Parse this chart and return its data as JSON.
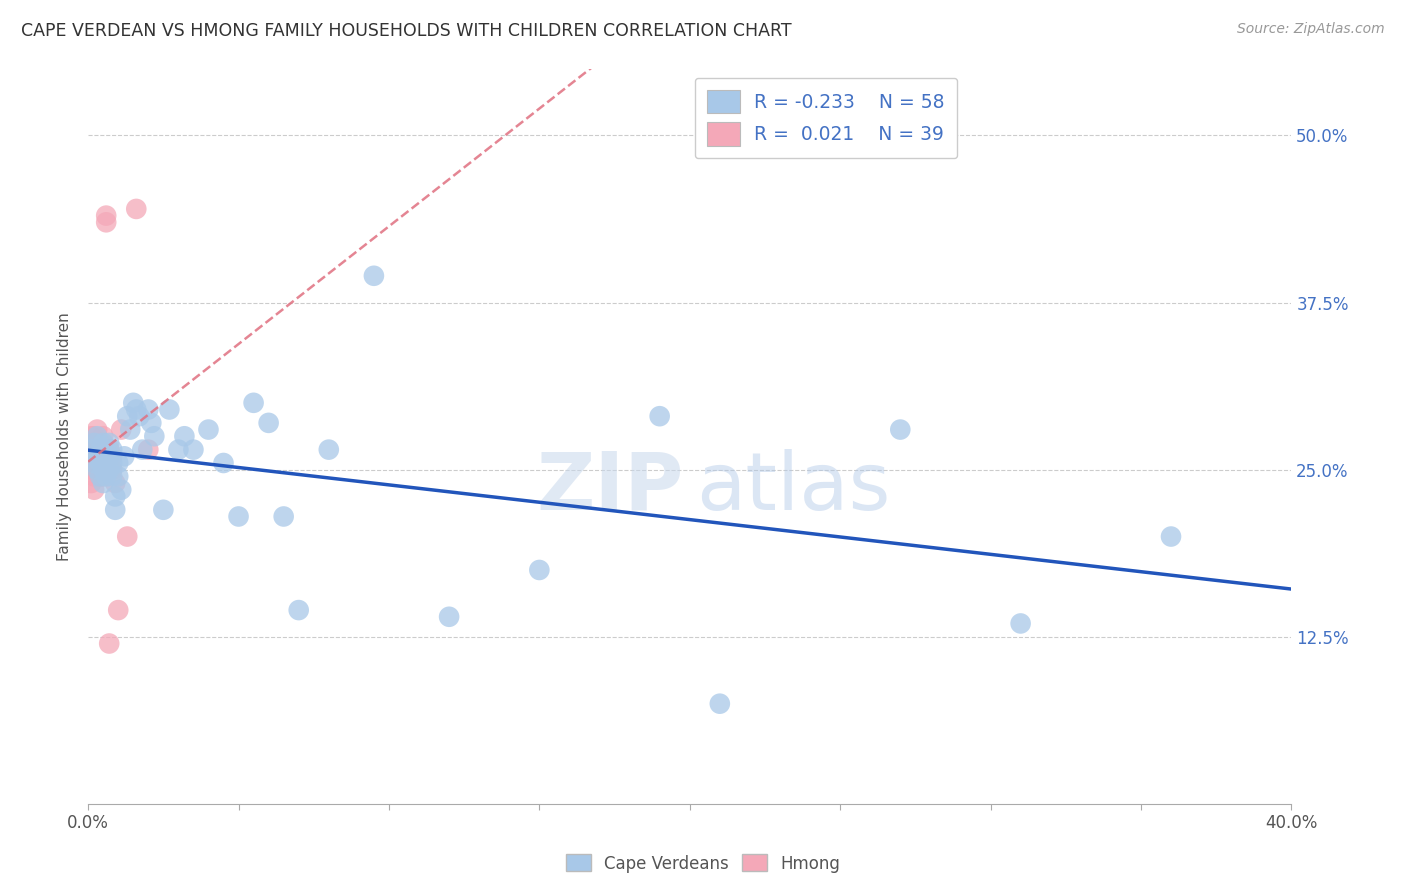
{
  "title": "CAPE VERDEAN VS HMONG FAMILY HOUSEHOLDS WITH CHILDREN CORRELATION CHART",
  "source": "Source: ZipAtlas.com",
  "ylabel": "Family Households with Children",
  "yticks": [
    "12.5%",
    "25.0%",
    "37.5%",
    "50.0%"
  ],
  "ytick_vals": [
    0.125,
    0.25,
    0.375,
    0.5
  ],
  "xlim": [
    0.0,
    0.4
  ],
  "ylim": [
    0.0,
    0.55
  ],
  "legend_r_cape": "-0.233",
  "legend_n_cape": "58",
  "legend_r_hmong": "0.021",
  "legend_n_hmong": "39",
  "cape_color": "#a8c8e8",
  "hmong_color": "#f4a8b8",
  "cape_line_color": "#2255bb",
  "hmong_line_color": "#e07080",
  "watermark_zip": "ZIP",
  "watermark_atlas": "atlas",
  "cape_verdeans_x": [
    0.001,
    0.002,
    0.002,
    0.003,
    0.003,
    0.003,
    0.004,
    0.004,
    0.004,
    0.005,
    0.005,
    0.005,
    0.005,
    0.006,
    0.006,
    0.006,
    0.007,
    0.007,
    0.007,
    0.008,
    0.008,
    0.008,
    0.009,
    0.009,
    0.01,
    0.01,
    0.011,
    0.012,
    0.013,
    0.014,
    0.015,
    0.016,
    0.017,
    0.018,
    0.02,
    0.021,
    0.022,
    0.025,
    0.027,
    0.03,
    0.032,
    0.035,
    0.04,
    0.045,
    0.05,
    0.055,
    0.06,
    0.065,
    0.07,
    0.08,
    0.095,
    0.12,
    0.15,
    0.19,
    0.21,
    0.27,
    0.31,
    0.36
  ],
  "cape_verdeans_y": [
    0.265,
    0.27,
    0.255,
    0.275,
    0.26,
    0.25,
    0.265,
    0.255,
    0.245,
    0.27,
    0.26,
    0.25,
    0.24,
    0.265,
    0.255,
    0.245,
    0.27,
    0.26,
    0.25,
    0.255,
    0.245,
    0.265,
    0.22,
    0.23,
    0.255,
    0.245,
    0.235,
    0.26,
    0.29,
    0.28,
    0.3,
    0.295,
    0.29,
    0.265,
    0.295,
    0.285,
    0.275,
    0.22,
    0.295,
    0.265,
    0.275,
    0.265,
    0.28,
    0.255,
    0.215,
    0.3,
    0.285,
    0.215,
    0.145,
    0.265,
    0.395,
    0.14,
    0.175,
    0.29,
    0.075,
    0.28,
    0.135,
    0.2
  ],
  "hmong_x": [
    0.001,
    0.001,
    0.001,
    0.001,
    0.001,
    0.001,
    0.002,
    0.002,
    0.002,
    0.002,
    0.002,
    0.002,
    0.002,
    0.003,
    0.003,
    0.003,
    0.003,
    0.003,
    0.004,
    0.004,
    0.004,
    0.004,
    0.005,
    0.005,
    0.005,
    0.005,
    0.006,
    0.006,
    0.006,
    0.007,
    0.007,
    0.008,
    0.008,
    0.009,
    0.01,
    0.011,
    0.013,
    0.016,
    0.02
  ],
  "hmong_y": [
    0.265,
    0.275,
    0.26,
    0.255,
    0.25,
    0.24,
    0.275,
    0.27,
    0.26,
    0.255,
    0.25,
    0.245,
    0.235,
    0.28,
    0.27,
    0.265,
    0.26,
    0.25,
    0.27,
    0.265,
    0.255,
    0.245,
    0.275,
    0.265,
    0.255,
    0.245,
    0.44,
    0.435,
    0.25,
    0.265,
    0.12,
    0.26,
    0.25,
    0.24,
    0.145,
    0.28,
    0.2,
    0.445,
    0.265
  ]
}
